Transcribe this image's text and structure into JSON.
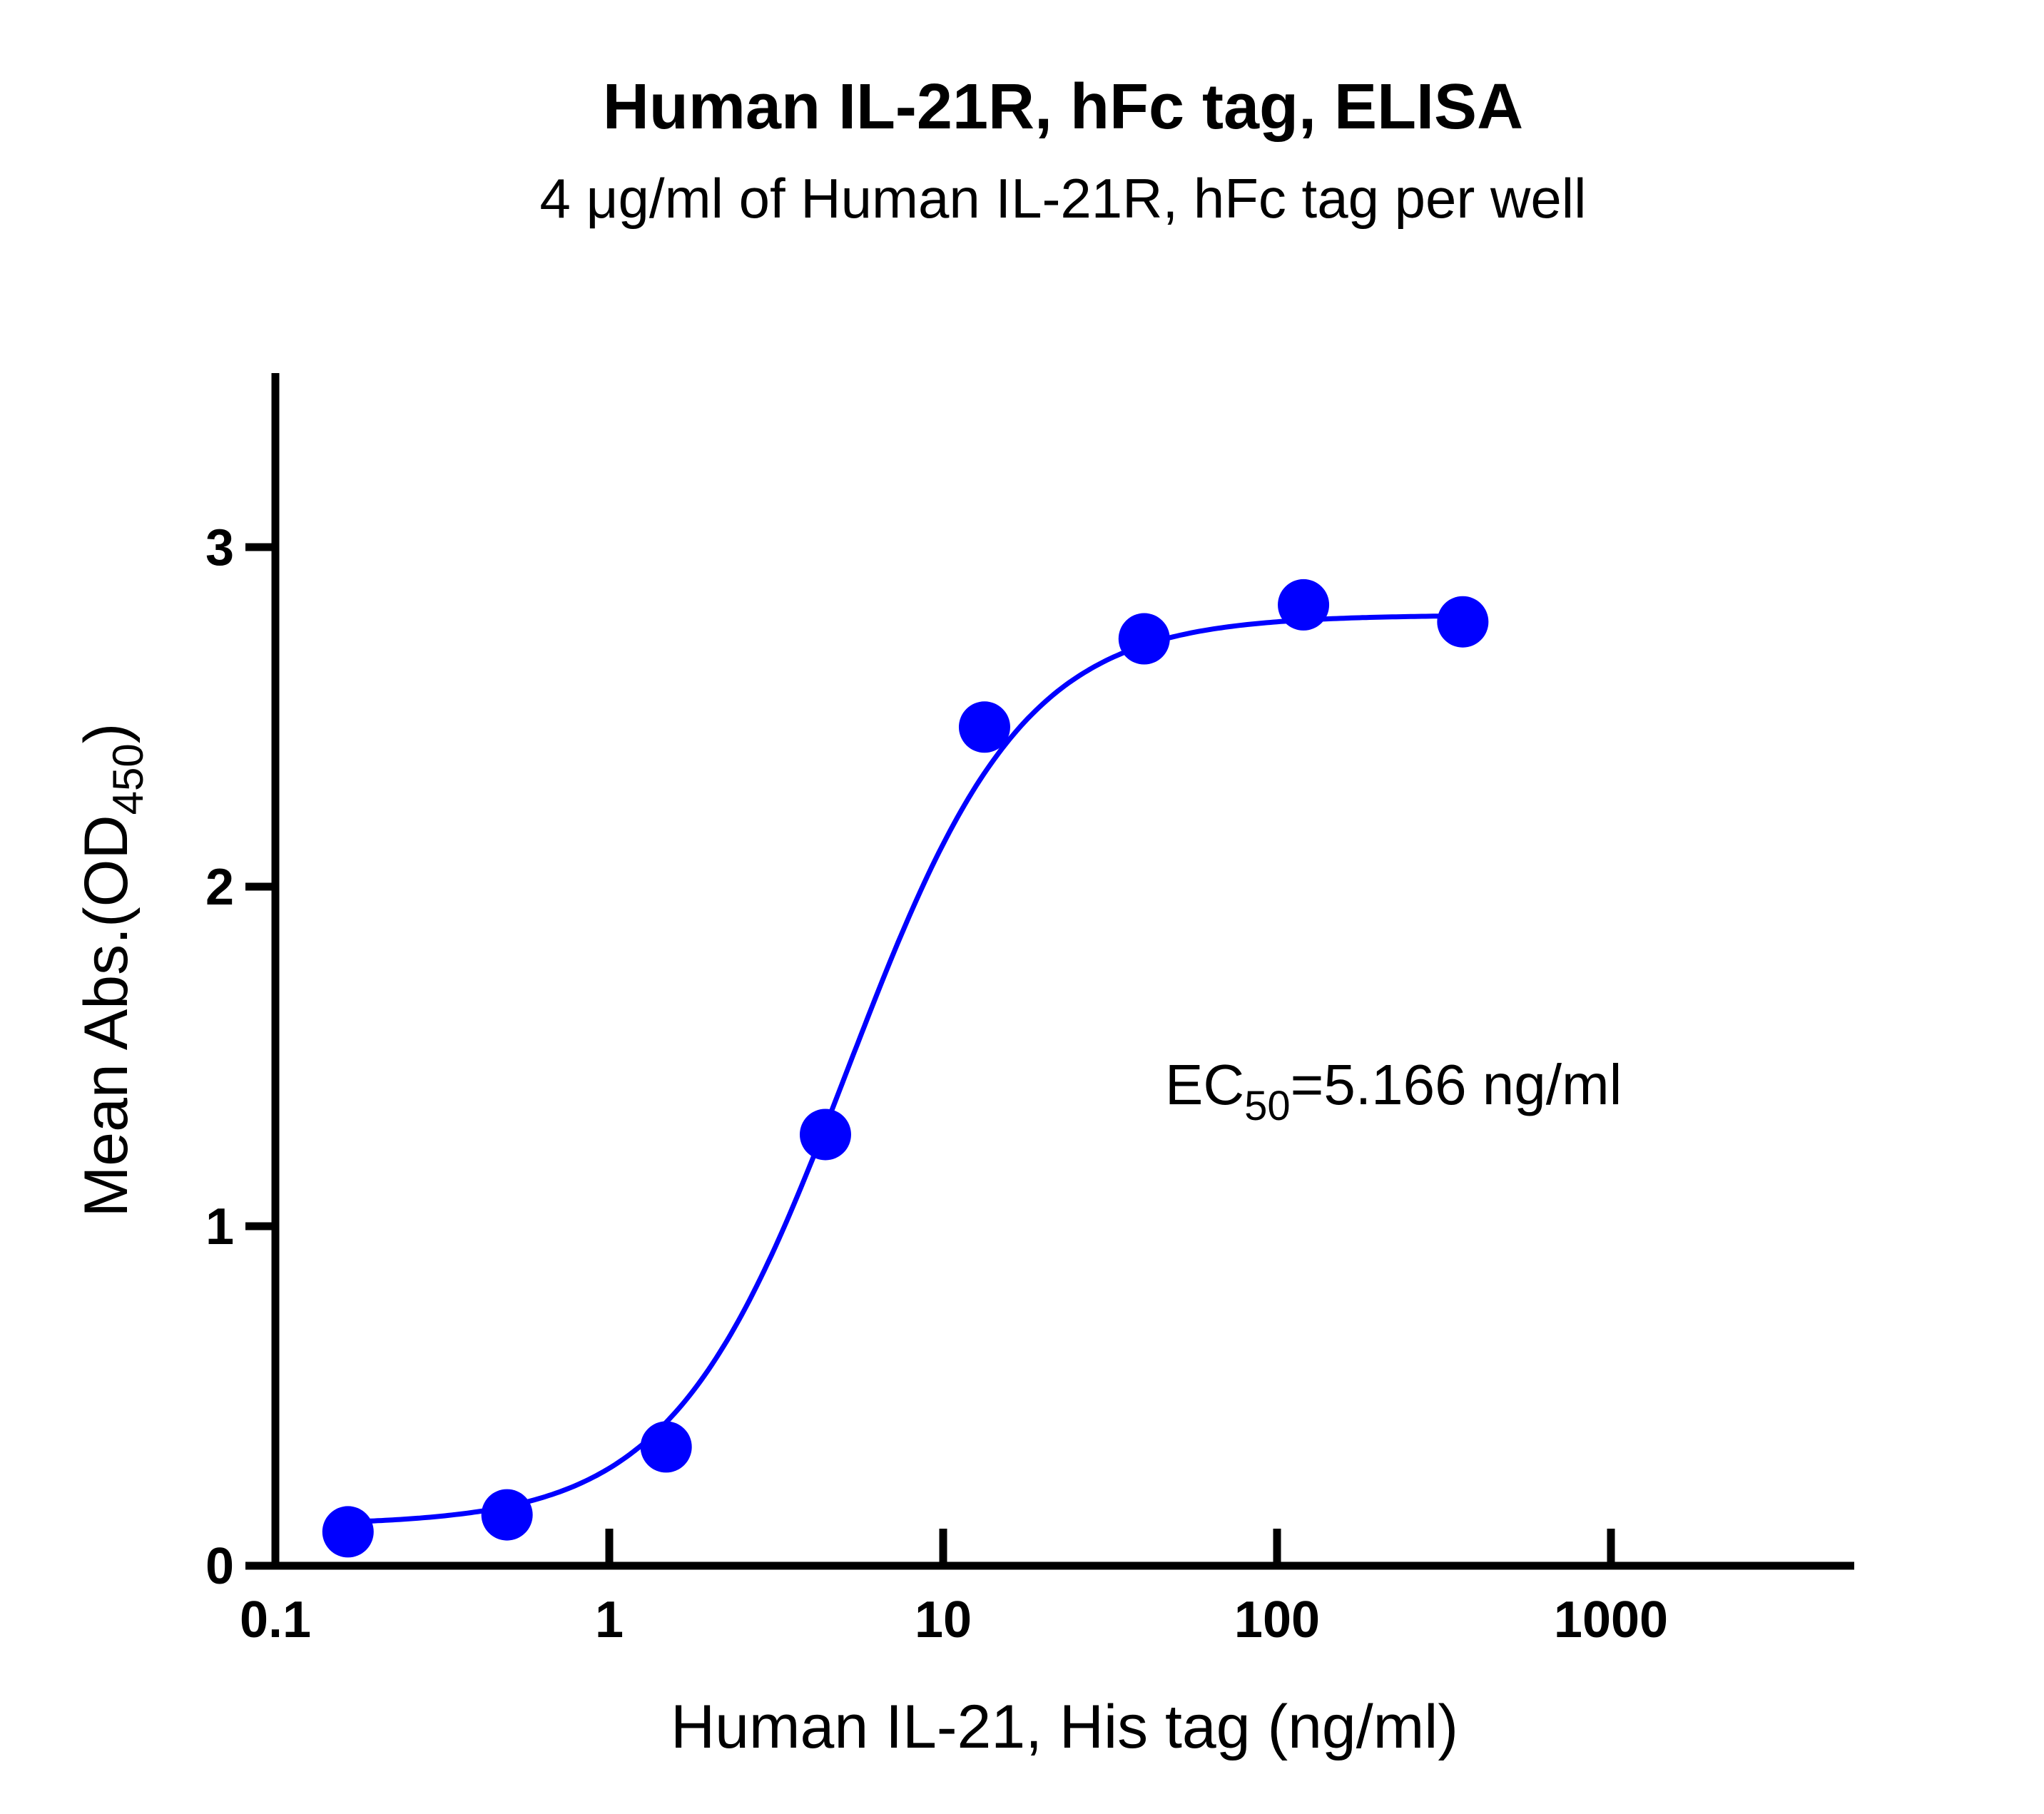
{
  "chart_data": {
    "type": "scatter",
    "title": "Human IL-21R, hFc tag, ELISA",
    "subtitle": "4 μg/ml of Human IL-21R, hFc tag per well",
    "xlabel": "Human IL-21, His tag (ng/ml)",
    "ylabel_main": "Mean Abs.(OD",
    "ylabel_sub": "450",
    "ylabel_end": ")",
    "xscale": "log",
    "xlim": [
      0.1,
      5300
    ],
    "ylim": [
      0,
      3.5
    ],
    "xticks": [
      0.1,
      1,
      10,
      100,
      1000
    ],
    "xtick_labels": [
      "0.1",
      "1",
      "10",
      "100",
      "1000"
    ],
    "yticks": [
      0,
      1,
      2,
      3
    ],
    "ytick_labels": [
      "0",
      "1",
      "2",
      "3"
    ],
    "series": [
      {
        "name": "Human IL-21, His tag",
        "color": "#0000ff",
        "x": [
          0.165,
          0.494,
          1.48,
          4.44,
          13.3,
          40,
          120,
          360
        ],
        "y": [
          0.1,
          0.15,
          0.35,
          1.27,
          2.47,
          2.73,
          2.83,
          2.78
        ]
      }
    ],
    "fit": {
      "type": "4PL",
      "bottom": 0.12,
      "top": 2.8,
      "ec50": 5.166,
      "hill": 1.65,
      "x_range": [
        0.165,
        360
      ]
    },
    "annotation": {
      "prefix": "EC",
      "sub": "50",
      "suffix": "=5.166 ng/ml"
    },
    "grid": false
  }
}
